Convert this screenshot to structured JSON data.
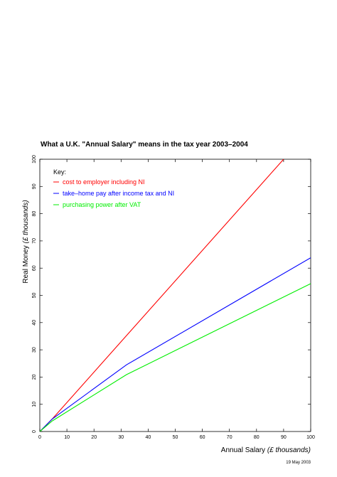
{
  "chart_data": {
    "type": "line",
    "title": "What a U.K. \"Annual Salary\" means in the tax year 2003–2004",
    "xlabel": "Annual Salary",
    "xlabel_unit": "(£ thousands)",
    "ylabel": "Real Money",
    "ylabel_unit": "(£ thousands)",
    "xlim": [
      0,
      100
    ],
    "ylim": [
      0,
      100
    ],
    "x_ticks": [
      0,
      10,
      20,
      30,
      40,
      50,
      60,
      70,
      80,
      90,
      100
    ],
    "y_ticks": [
      0,
      10,
      20,
      30,
      40,
      50,
      60,
      70,
      80,
      90,
      100
    ],
    "grid": false,
    "legend_title": "Key:",
    "legend_position": "top-left",
    "series": [
      {
        "name": "cost to employer including NI",
        "color": "#ff0000",
        "points": [
          [
            0,
            0
          ],
          [
            4.6,
            4.6
          ],
          [
            30,
            33.0
          ],
          [
            90,
            100
          ]
        ]
      },
      {
        "name": "take–home pay after income tax and NI",
        "color": "#0000ff",
        "points": [
          [
            0,
            0
          ],
          [
            4.6,
            4.6
          ],
          [
            32,
            24.5
          ],
          [
            100,
            63.8
          ]
        ]
      },
      {
        "name": "purchasing power after VAT",
        "color": "#00ee00",
        "points": [
          [
            0,
            0
          ],
          [
            4.6,
            3.9
          ],
          [
            32,
            20.9
          ],
          [
            100,
            54.3
          ]
        ]
      }
    ],
    "footnote": "19 May 2003"
  }
}
